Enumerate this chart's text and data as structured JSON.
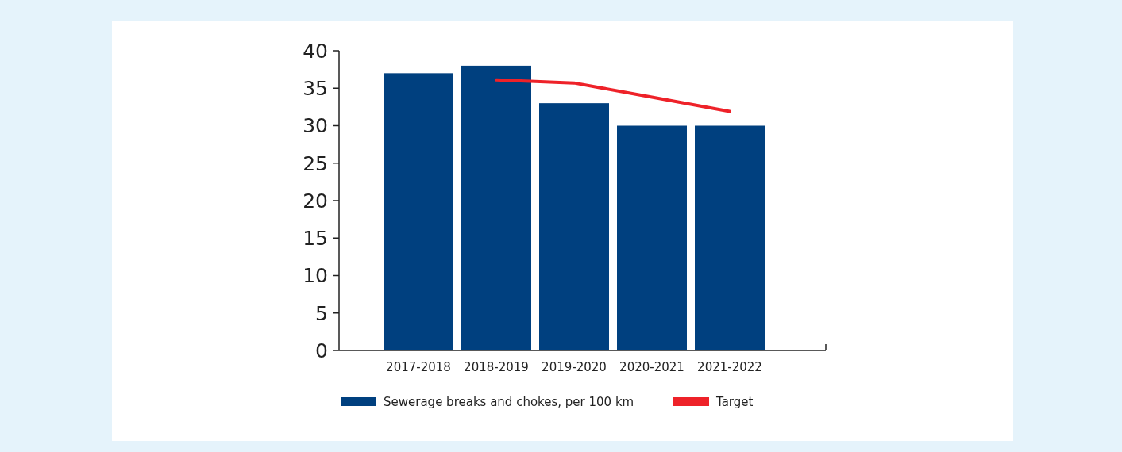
{
  "chart_data": {
    "type": "bar",
    "categories": [
      "2017-2018",
      "2018-2019",
      "2019-2020",
      "2020-2021",
      "2021-2022"
    ],
    "series": [
      {
        "name": "Sewerage breaks and chokes, per 100 km",
        "color": "#00407f",
        "values": [
          37,
          38,
          33,
          30,
          30
        ]
      },
      {
        "name": "Target",
        "type": "line",
        "color": "#ee2229",
        "values": [
          null,
          36.1,
          35.7,
          33.8,
          31.9
        ]
      }
    ],
    "ylim": [
      0,
      40
    ],
    "yticks": [
      0,
      5,
      10,
      15,
      20,
      25,
      30,
      35,
      40
    ],
    "grid": false,
    "legend": "bottom"
  }
}
